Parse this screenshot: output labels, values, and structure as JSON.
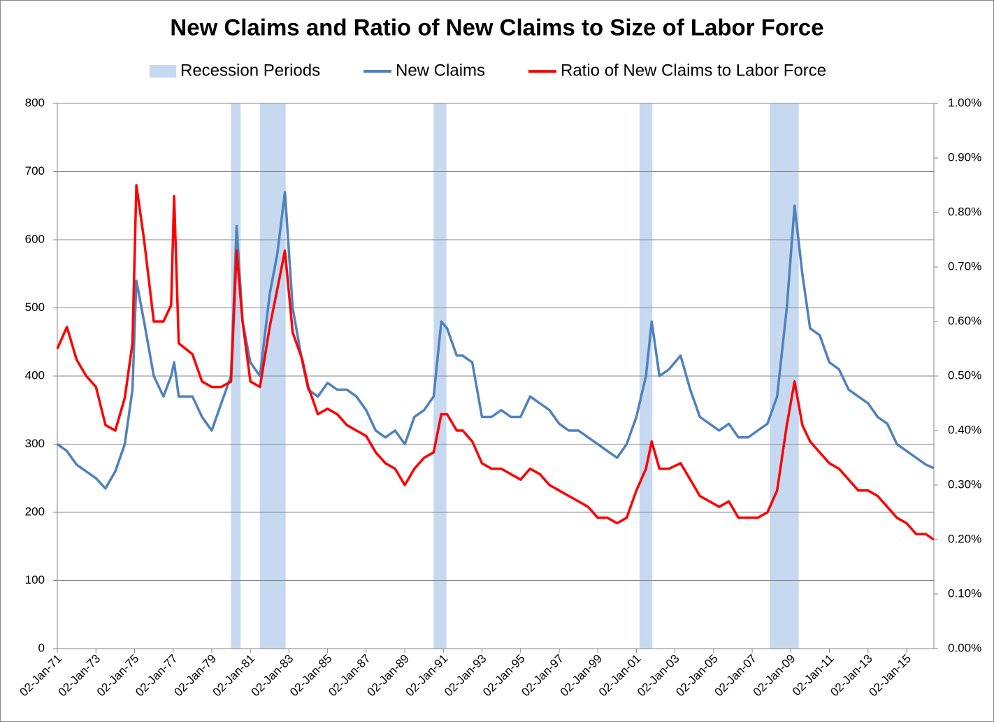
{
  "chart_data": {
    "type": "line",
    "title": "New Claims and Ratio of New Claims to Size of Labor Force",
    "recessions": {
      "name": "Recession Periods",
      "color": "#c6d9f1",
      "periods": [
        [
          "1980-01-01",
          "1980-07-01"
        ],
        [
          "1981-07-01",
          "1982-11-01"
        ],
        [
          "1990-07-01",
          "1991-03-01"
        ],
        [
          "2001-03-01",
          "2001-11-01"
        ],
        [
          "2007-12-01",
          "2009-06-01"
        ]
      ]
    },
    "x": [
      "1971-01-02",
      "1971-07-02",
      "1972-01-02",
      "1972-07-02",
      "1973-01-02",
      "1973-07-02",
      "1974-01-02",
      "1974-07-02",
      "1974-11-24",
      "1975-02-06",
      "1975-07-02",
      "1976-01-02",
      "1976-07-02",
      "1976-11-24",
      "1977-01-20",
      "1977-04-17",
      "1978-01-02",
      "1978-07-02",
      "1979-01-02",
      "1979-07-02",
      "1980-01-02",
      "1980-04-17",
      "1980-08-07",
      "1981-01-02",
      "1981-07-02",
      "1982-01-02",
      "1982-05-28",
      "1982-10-18",
      "1983-03-14",
      "1983-09-12",
      "1984-01-02",
      "1984-07-02",
      "1985-01-02",
      "1985-07-02",
      "1986-01-02",
      "1986-07-02",
      "1987-01-02",
      "1987-07-02",
      "1988-01-02",
      "1988-07-02",
      "1989-01-02",
      "1989-07-02",
      "1990-01-02",
      "1990-07-02",
      "1990-11-24",
      "1991-03-14",
      "1991-09-12",
      "1992-01-02",
      "1992-07-02",
      "1993-01-02",
      "1993-07-02",
      "1994-01-02",
      "1994-07-02",
      "1995-01-02",
      "1995-07-02",
      "1996-01-02",
      "1996-07-02",
      "1997-01-02",
      "1997-07-02",
      "1998-01-02",
      "1998-07-02",
      "1999-01-02",
      "1999-07-02",
      "2000-01-02",
      "2000-07-02",
      "2001-01-02",
      "2001-07-02",
      "2001-10-18",
      "2002-03-14",
      "2002-09-12",
      "2003-04-17",
      "2003-10-18",
      "2004-04-17",
      "2004-10-18",
      "2005-04-17",
      "2005-10-18",
      "2006-04-17",
      "2006-10-18",
      "2007-04-17",
      "2007-10-18",
      "2008-04-17",
      "2008-10-18",
      "2009-03-14",
      "2009-08-07",
      "2010-01-02",
      "2010-07-02",
      "2011-01-02",
      "2011-07-02",
      "2012-01-02",
      "2012-07-02",
      "2013-01-02",
      "2013-07-02",
      "2014-01-02",
      "2014-07-02",
      "2015-01-02",
      "2015-07-02",
      "2016-01-02",
      "2016-05-28"
    ],
    "series": [
      {
        "name": "New Claims",
        "color": "#4f81bd",
        "axis": "y",
        "values": [
          300,
          290,
          270,
          260,
          250,
          235,
          260,
          300,
          380,
          540,
          480,
          400,
          370,
          400,
          420,
          370,
          370,
          340,
          320,
          360,
          400,
          620,
          480,
          420,
          400,
          520,
          580,
          670,
          500,
          420,
          380,
          370,
          390,
          380,
          380,
          370,
          350,
          320,
          310,
          320,
          300,
          340,
          350,
          370,
          480,
          470,
          430,
          430,
          420,
          340,
          340,
          350,
          340,
          340,
          370,
          360,
          350,
          330,
          320,
          320,
          310,
          300,
          290,
          280,
          300,
          340,
          400,
          480,
          400,
          410,
          430,
          380,
          340,
          330,
          320,
          330,
          310,
          310,
          320,
          330,
          370,
          500,
          650,
          550,
          470,
          460,
          420,
          410,
          380,
          370,
          360,
          340,
          330,
          300,
          290,
          280,
          270,
          265
        ]
      },
      {
        "name": "Ratio of New Claims to Labor Force",
        "color": "#ff0000",
        "axis": "y2",
        "values": [
          0.55,
          0.59,
          0.53,
          0.5,
          0.48,
          0.41,
          0.4,
          0.46,
          0.56,
          0.85,
          0.75,
          0.6,
          0.6,
          0.63,
          0.83,
          0.56,
          0.54,
          0.49,
          0.48,
          0.48,
          0.49,
          0.73,
          0.6,
          0.49,
          0.48,
          0.59,
          0.66,
          0.73,
          0.58,
          0.53,
          0.48,
          0.43,
          0.44,
          0.43,
          0.41,
          0.4,
          0.39,
          0.36,
          0.34,
          0.33,
          0.3,
          0.33,
          0.35,
          0.36,
          0.43,
          0.43,
          0.4,
          0.4,
          0.38,
          0.34,
          0.33,
          0.33,
          0.32,
          0.31,
          0.33,
          0.32,
          0.3,
          0.29,
          0.28,
          0.27,
          0.26,
          0.24,
          0.24,
          0.23,
          0.24,
          0.29,
          0.33,
          0.38,
          0.33,
          0.33,
          0.34,
          0.31,
          0.28,
          0.27,
          0.26,
          0.27,
          0.24,
          0.24,
          0.24,
          0.25,
          0.29,
          0.41,
          0.49,
          0.41,
          0.38,
          0.36,
          0.34,
          0.33,
          0.31,
          0.29,
          0.29,
          0.28,
          0.26,
          0.24,
          0.23,
          0.21,
          0.21,
          0.2
        ]
      }
    ],
    "xlim": [
      "1971-01-02",
      "2016-06-01"
    ],
    "xticks": [
      {
        "value": "1971-01-02",
        "label": "02-Jan-71"
      },
      {
        "value": "1973-01-02",
        "label": "02-Jan-73"
      },
      {
        "value": "1975-01-02",
        "label": "02-Jan-75"
      },
      {
        "value": "1977-01-02",
        "label": "02-Jan-77"
      },
      {
        "value": "1979-01-02",
        "label": "02-Jan-79"
      },
      {
        "value": "1981-01-02",
        "label": "02-Jan-81"
      },
      {
        "value": "1983-01-02",
        "label": "02-Jan-83"
      },
      {
        "value": "1985-01-02",
        "label": "02-Jan-85"
      },
      {
        "value": "1987-01-02",
        "label": "02-Jan-87"
      },
      {
        "value": "1989-01-02",
        "label": "02-Jan-89"
      },
      {
        "value": "1991-01-02",
        "label": "02-Jan-91"
      },
      {
        "value": "1993-01-02",
        "label": "02-Jan-93"
      },
      {
        "value": "1995-01-02",
        "label": "02-Jan-95"
      },
      {
        "value": "1997-01-02",
        "label": "02-Jan-97"
      },
      {
        "value": "1999-01-02",
        "label": "02-Jan-99"
      },
      {
        "value": "2001-01-02",
        "label": "02-Jan-01"
      },
      {
        "value": "2003-01-02",
        "label": "02-Jan-03"
      },
      {
        "value": "2005-01-02",
        "label": "02-Jan-05"
      },
      {
        "value": "2007-01-02",
        "label": "02-Jan-07"
      },
      {
        "value": "2009-01-02",
        "label": "02-Jan-09"
      },
      {
        "value": "2011-01-02",
        "label": "02-Jan-11"
      },
      {
        "value": "2013-01-02",
        "label": "02-Jan-13"
      },
      {
        "value": "2015-01-02",
        "label": "02-Jan-15"
      }
    ],
    "ylim": [
      0,
      800
    ],
    "yticks": [
      0,
      100,
      200,
      300,
      400,
      500,
      600,
      700,
      800
    ],
    "y2lim": [
      0,
      1
    ],
    "y2ticks": [
      {
        "value": 0,
        "label": "0.00%"
      },
      {
        "value": 0.1,
        "label": "0.10%"
      },
      {
        "value": 0.2,
        "label": "0.20%"
      },
      {
        "value": 0.3,
        "label": "0.30%"
      },
      {
        "value": 0.4,
        "label": "0.40%"
      },
      {
        "value": 0.5,
        "label": "0.50%"
      },
      {
        "value": 0.6,
        "label": "0.60%"
      },
      {
        "value": 0.7,
        "label": "0.70%"
      },
      {
        "value": 0.8,
        "label": "0.80%"
      },
      {
        "value": 0.9,
        "label": "0.90%"
      },
      {
        "value": 1,
        "label": "1.00%"
      }
    ],
    "grid": true,
    "legend": "top"
  }
}
